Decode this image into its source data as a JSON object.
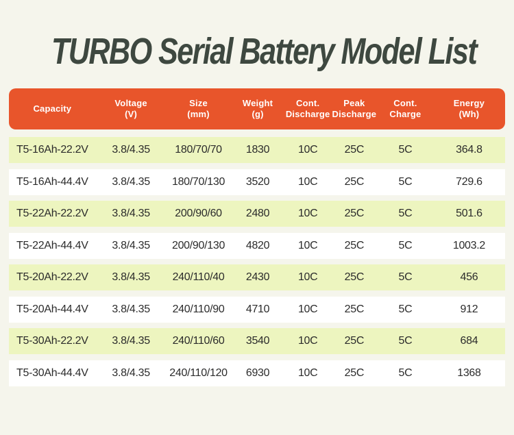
{
  "page": {
    "title": "TURBO Serial Battery Model List",
    "colors": {
      "background": "#F5F5EC",
      "title_text": "#3E4840",
      "header_bg": "#E8552B",
      "header_text": "#FFFFFF",
      "row_bg": "#FFFFFF",
      "row_alt_bg": "#EDF5BF",
      "cell_text": "#2B2B2B"
    }
  },
  "table": {
    "columns": [
      "Capacity",
      "Voltage\n(V)",
      "Size\n(mm)",
      "Weight\n(g)",
      "Cont.\nDischarge",
      "Peak\nDischarge",
      "Cont.\nCharge",
      "Energy\n(Wh)"
    ],
    "rows": [
      [
        "T5-16Ah-22.2V",
        "3.8/4.35",
        "180/70/70",
        "1830",
        "10C",
        "25C",
        "5C",
        "364.8"
      ],
      [
        "T5-16Ah-44.4V",
        "3.8/4.35",
        "180/70/130",
        "3520",
        "10C",
        "25C",
        "5C",
        "729.6"
      ],
      [
        "T5-22Ah-22.2V",
        "3.8/4.35",
        "200/90/60",
        "2480",
        "10C",
        "25C",
        "5C",
        "501.6"
      ],
      [
        "T5-22Ah-44.4V",
        "3.8/4.35",
        "200/90/130",
        "4820",
        "10C",
        "25C",
        "5C",
        "1003.2"
      ],
      [
        "T5-20Ah-22.2V",
        "3.8/4.35",
        "240/110/40",
        "2430",
        "10C",
        "25C",
        "5C",
        "456"
      ],
      [
        "T5-20Ah-44.4V",
        "3.8/4.35",
        "240/110/90",
        "4710",
        "10C",
        "25C",
        "5C",
        "912"
      ],
      [
        "T5-30Ah-22.2V",
        "3.8/4.35",
        "240/110/60",
        "3540",
        "10C",
        "25C",
        "5C",
        "684"
      ],
      [
        "T5-30Ah-44.4V",
        "3.8/4.35",
        "240/110/120",
        "6930",
        "10C",
        "25C",
        "5C",
        "1368"
      ]
    ]
  }
}
